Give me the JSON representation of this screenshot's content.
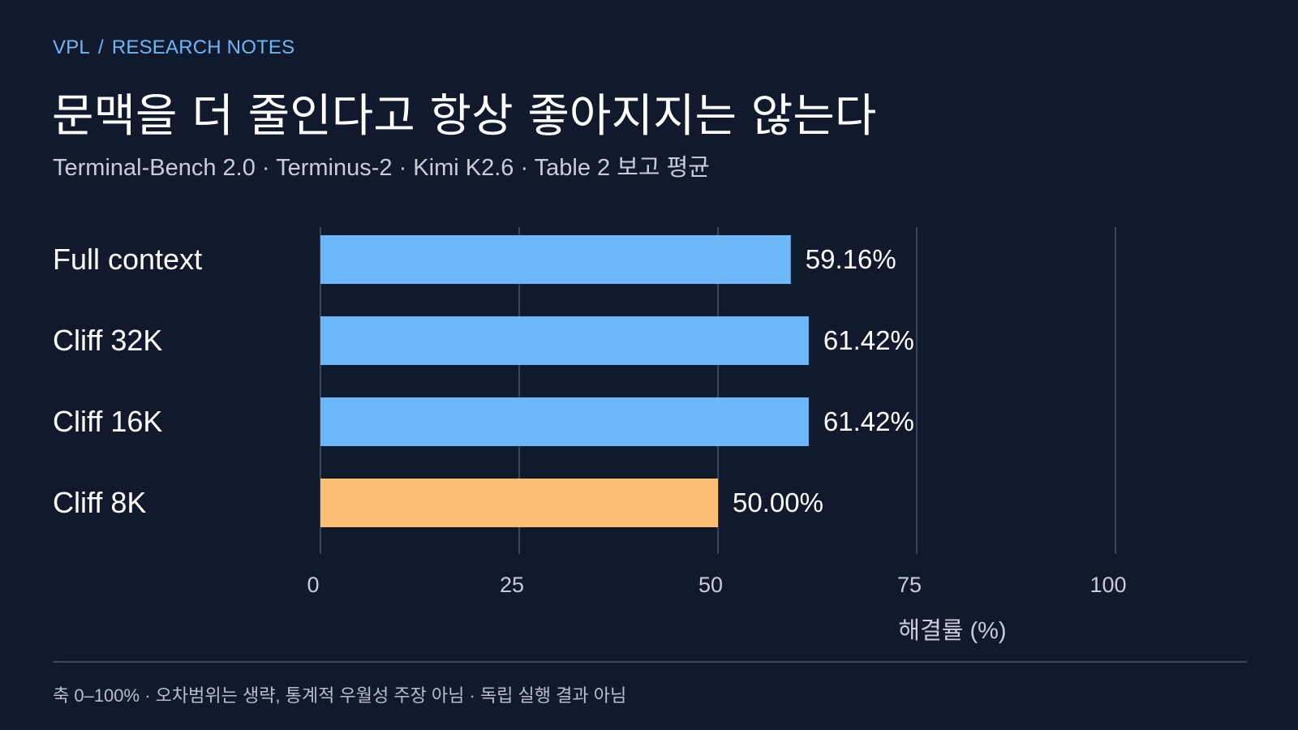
{
  "breadcrumb": {
    "section": "VPL",
    "separator": "/",
    "page": "RESEARCH NOTES"
  },
  "title": "문맥을 더 줄인다고 항상 좋아지지는 않는다",
  "subtitle": "Terminal-Bench 2.0 · Terminus-2 · Kimi K2.6 · Table 2 보고 평균",
  "footnote": "축 0–100% · 오차범위는 생략, 통계적 우월성 주장 아님 · 독립 실행 결과 아님",
  "chart_data": {
    "type": "bar",
    "orientation": "horizontal",
    "categories": [
      "Full context",
      "Cliff 32K",
      "Cliff 16K",
      "Cliff 8K"
    ],
    "values": [
      59.16,
      61.42,
      61.42,
      50.0
    ],
    "value_labels": [
      "59.16%",
      "61.42%",
      "61.42%",
      "50.00%"
    ],
    "bar_colors": [
      "#6cb8fa",
      "#6cb8fa",
      "#6cb8fa",
      "#ffbe73"
    ],
    "xlabel": "해결률 (%)",
    "xlim": [
      0,
      100
    ],
    "xticks": [
      0,
      25,
      50,
      75,
      100
    ],
    "grid": true
  }
}
